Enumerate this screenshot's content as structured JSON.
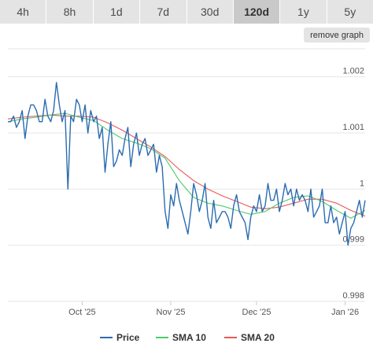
{
  "range_tabs": [
    {
      "label": "4h",
      "active": false
    },
    {
      "label": "8h",
      "active": false
    },
    {
      "label": "1d",
      "active": false
    },
    {
      "label": "7d",
      "active": false
    },
    {
      "label": "30d",
      "active": false
    },
    {
      "label": "120d",
      "active": true
    },
    {
      "label": "1y",
      "active": false
    },
    {
      "label": "5y",
      "active": false
    }
  ],
  "remove_graph_label": "remove graph",
  "colors": {
    "price": "#2b6cb0",
    "sma10": "#4ccc6a",
    "sma20": "#e85a5a",
    "grid": "#e6e6e6",
    "tab_bg": "#e4e4e4",
    "tab_active_bg": "#c9c9c9"
  },
  "chart_data": {
    "type": "line",
    "ylim": [
      0.998,
      1.0025
    ],
    "y_ticks": [
      {
        "value": 1.002,
        "label": "1.002"
      },
      {
        "value": 1.001,
        "label": "1.001"
      },
      {
        "value": 1.0,
        "label": "1"
      },
      {
        "value": 0.999,
        "label": "0.999"
      },
      {
        "value": 0.998,
        "label": "0.998"
      }
    ],
    "x_range": [
      "2025-09-05",
      "2026-01-08"
    ],
    "x_ticks": [
      {
        "date": "2025-10-01",
        "label": "Oct '25"
      },
      {
        "date": "2025-11-01",
        "label": "Nov '25"
      },
      {
        "date": "2025-12-01",
        "label": "Dec '25"
      },
      {
        "date": "2026-01-01",
        "label": "Jan '26"
      }
    ],
    "grid": true,
    "legend_position": "bottom",
    "series": [
      {
        "name": "Price",
        "color": "#2b6cb0",
        "points": [
          [
            "2025-09-05",
            1.0012
          ],
          [
            "2025-09-06",
            1.0012
          ],
          [
            "2025-09-07",
            1.0013
          ],
          [
            "2025-09-08",
            1.0011
          ],
          [
            "2025-09-09",
            1.0012
          ],
          [
            "2025-09-10",
            1.0014
          ],
          [
            "2025-09-11",
            1.0009
          ],
          [
            "2025-09-12",
            1.0013
          ],
          [
            "2025-09-13",
            1.0015
          ],
          [
            "2025-09-14",
            1.0015
          ],
          [
            "2025-09-15",
            1.0014
          ],
          [
            "2025-09-16",
            1.0012
          ],
          [
            "2025-09-17",
            1.0012
          ],
          [
            "2025-09-18",
            1.0016
          ],
          [
            "2025-09-19",
            1.0013
          ],
          [
            "2025-09-20",
            1.0012
          ],
          [
            "2025-09-21",
            1.0014
          ],
          [
            "2025-09-22",
            1.0019
          ],
          [
            "2025-09-23",
            1.0015
          ],
          [
            "2025-09-24",
            1.0012
          ],
          [
            "2025-09-25",
            1.0014
          ],
          [
            "2025-09-26",
            1.0
          ],
          [
            "2025-09-27",
            1.0013
          ],
          [
            "2025-09-28",
            1.0012
          ],
          [
            "2025-09-29",
            1.0016
          ],
          [
            "2025-09-30",
            1.0015
          ],
          [
            "2025-10-01",
            1.0012
          ],
          [
            "2025-10-02",
            1.0015
          ],
          [
            "2025-10-03",
            1.001
          ],
          [
            "2025-10-04",
            1.0014
          ],
          [
            "2025-10-05",
            1.0012
          ],
          [
            "2025-10-06",
            1.0013
          ],
          [
            "2025-10-07",
            1.0009
          ],
          [
            "2025-10-08",
            1.0011
          ],
          [
            "2025-10-09",
            1.0003
          ],
          [
            "2025-10-10",
            1.0008
          ],
          [
            "2025-10-11",
            1.0012
          ],
          [
            "2025-10-12",
            1.0004
          ],
          [
            "2025-10-13",
            1.0005
          ],
          [
            "2025-10-14",
            1.0007
          ],
          [
            "2025-10-15",
            1.0006
          ],
          [
            "2025-10-16",
            1.0009
          ],
          [
            "2025-10-17",
            1.0011
          ],
          [
            "2025-10-18",
            1.0004
          ],
          [
            "2025-10-19",
            1.0008
          ],
          [
            "2025-10-20",
            1.001
          ],
          [
            "2025-10-21",
            1.0006
          ],
          [
            "2025-10-22",
            1.0008
          ],
          [
            "2025-10-23",
            1.0009
          ],
          [
            "2025-10-24",
            1.0006
          ],
          [
            "2025-10-25",
            1.0007
          ],
          [
            "2025-10-26",
            1.0008
          ],
          [
            "2025-10-27",
            1.0003
          ],
          [
            "2025-10-28",
            1.0006
          ],
          [
            "2025-10-29",
            1.0004
          ],
          [
            "2025-10-30",
            0.9996
          ],
          [
            "2025-10-31",
            0.9993
          ],
          [
            "2025-11-01",
            0.9999
          ],
          [
            "2025-11-02",
            0.9997
          ],
          [
            "2025-11-03",
            1.0001
          ],
          [
            "2025-11-04",
            0.9998
          ],
          [
            "2025-11-05",
            0.9996
          ],
          [
            "2025-11-06",
            0.9994
          ],
          [
            "2025-11-07",
            0.9992
          ],
          [
            "2025-11-08",
            0.9996
          ],
          [
            "2025-11-09",
            1.0001
          ],
          [
            "2025-11-10",
            0.9999
          ],
          [
            "2025-11-11",
            0.9996
          ],
          [
            "2025-11-12",
            0.9998
          ],
          [
            "2025-11-13",
            1.0001
          ],
          [
            "2025-11-14",
            0.9995
          ],
          [
            "2025-11-15",
            0.9993
          ],
          [
            "2025-11-16",
            0.9998
          ],
          [
            "2025-11-17",
            0.9994
          ],
          [
            "2025-11-18",
            0.9995
          ],
          [
            "2025-11-19",
            0.9996
          ],
          [
            "2025-11-20",
            0.9996
          ],
          [
            "2025-11-21",
            0.9995
          ],
          [
            "2025-11-22",
            0.9993
          ],
          [
            "2025-11-23",
            0.9997
          ],
          [
            "2025-11-24",
            0.9999
          ],
          [
            "2025-11-25",
            0.9996
          ],
          [
            "2025-11-26",
            0.9995
          ],
          [
            "2025-11-27",
            0.9994
          ],
          [
            "2025-11-28",
            0.9991
          ],
          [
            "2025-11-29",
            0.9995
          ],
          [
            "2025-11-30",
            0.9997
          ],
          [
            "2025-12-01",
            0.9996
          ],
          [
            "2025-12-02",
            0.9999
          ],
          [
            "2025-12-03",
            0.9996
          ],
          [
            "2025-12-04",
            0.9997
          ],
          [
            "2025-12-05",
            1.0001
          ],
          [
            "2025-12-06",
            0.9998
          ],
          [
            "2025-12-07",
            0.9998
          ],
          [
            "2025-12-08",
            1.0
          ],
          [
            "2025-12-09",
            0.9996
          ],
          [
            "2025-12-10",
            0.9998
          ],
          [
            "2025-12-11",
            1.0001
          ],
          [
            "2025-12-12",
            0.9999
          ],
          [
            "2025-12-13",
            1.0
          ],
          [
            "2025-12-14",
            0.9997
          ],
          [
            "2025-12-15",
            1.0
          ],
          [
            "2025-12-16",
            0.9998
          ],
          [
            "2025-12-17",
            0.9999
          ],
          [
            "2025-12-18",
            0.9998
          ],
          [
            "2025-12-19",
            0.9996
          ],
          [
            "2025-12-20",
            1.0
          ],
          [
            "2025-12-21",
            0.9995
          ],
          [
            "2025-12-22",
            0.9996
          ],
          [
            "2025-12-23",
            0.9997
          ],
          [
            "2025-12-24",
            1.0
          ],
          [
            "2025-12-25",
            0.9994
          ],
          [
            "2025-12-26",
            0.9994
          ],
          [
            "2025-12-27",
            0.9997
          ],
          [
            "2025-12-28",
            0.9994
          ],
          [
            "2025-12-29",
            0.9995
          ],
          [
            "2025-12-30",
            0.9992
          ],
          [
            "2025-12-31",
            0.9994
          ],
          [
            "2026-01-01",
            0.9996
          ],
          [
            "2026-01-02",
            0.999
          ],
          [
            "2026-01-03",
            0.9993
          ],
          [
            "2026-01-04",
            0.9994
          ],
          [
            "2026-01-05",
            0.9996
          ],
          [
            "2026-01-06",
            0.9998
          ],
          [
            "2026-01-07",
            0.9995
          ],
          [
            "2026-01-08",
            0.9998
          ]
        ]
      },
      {
        "name": "SMA 10",
        "color": "#4ccc6a",
        "points": [
          [
            "2025-09-05",
            1.0012
          ],
          [
            "2025-09-10",
            1.00125
          ],
          [
            "2025-09-15",
            1.00128
          ],
          [
            "2025-09-20",
            1.00132
          ],
          [
            "2025-09-25",
            1.00135
          ],
          [
            "2025-09-30",
            1.00128
          ],
          [
            "2025-10-05",
            1.00122
          ],
          [
            "2025-10-10",
            1.00105
          ],
          [
            "2025-10-15",
            1.0009
          ],
          [
            "2025-10-20",
            1.00082
          ],
          [
            "2025-10-25",
            1.00072
          ],
          [
            "2025-10-30",
            1.00055
          ],
          [
            "2025-11-04",
            1.00015
          ],
          [
            "2025-11-09",
            0.99985
          ],
          [
            "2025-11-14",
            0.99975
          ],
          [
            "2025-11-19",
            0.9997
          ],
          [
            "2025-11-24",
            0.99962
          ],
          [
            "2025-11-29",
            0.99955
          ],
          [
            "2025-12-04",
            0.9996
          ],
          [
            "2025-12-09",
            0.99975
          ],
          [
            "2025-12-14",
            0.99985
          ],
          [
            "2025-12-19",
            0.99988
          ],
          [
            "2025-12-24",
            0.99978
          ],
          [
            "2025-12-29",
            0.99962
          ],
          [
            "2026-01-03",
            0.99948
          ],
          [
            "2026-01-08",
            0.99962
          ]
        ]
      },
      {
        "name": "SMA 20",
        "color": "#e85a5a",
        "points": [
          [
            "2025-09-05",
            1.00125
          ],
          [
            "2025-09-10",
            1.00128
          ],
          [
            "2025-09-15",
            1.0013
          ],
          [
            "2025-09-20",
            1.00132
          ],
          [
            "2025-09-25",
            1.0013
          ],
          [
            "2025-09-30",
            1.0013
          ],
          [
            "2025-10-05",
            1.00128
          ],
          [
            "2025-10-10",
            1.00118
          ],
          [
            "2025-10-15",
            1.00105
          ],
          [
            "2025-10-20",
            1.0009
          ],
          [
            "2025-10-25",
            1.00075
          ],
          [
            "2025-10-30",
            1.00058
          ],
          [
            "2025-11-04",
            1.00035
          ],
          [
            "2025-11-09",
            1.00015
          ],
          [
            "2025-11-14",
            1.0
          ],
          [
            "2025-11-19",
            0.99988
          ],
          [
            "2025-11-24",
            0.99978
          ],
          [
            "2025-11-29",
            0.99968
          ],
          [
            "2025-12-04",
            0.99965
          ],
          [
            "2025-12-09",
            0.99968
          ],
          [
            "2025-12-14",
            0.99975
          ],
          [
            "2025-12-19",
            0.99982
          ],
          [
            "2025-12-24",
            0.99982
          ],
          [
            "2025-12-29",
            0.99975
          ],
          [
            "2026-01-03",
            0.99962
          ],
          [
            "2026-01-08",
            0.99952
          ]
        ]
      }
    ]
  }
}
